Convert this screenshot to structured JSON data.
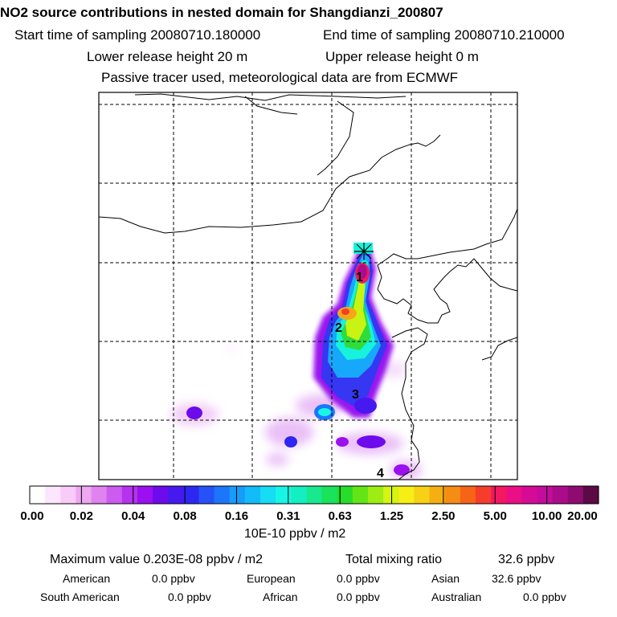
{
  "header": {
    "title": "NO2 source contributions in nested domain for Shangdianzi_200807",
    "start_label": "Start time of sampling 20080710.180000",
    "end_label": "End time of sampling 20080710.210000",
    "lower_release": "Lower release height   20 m",
    "upper_release": "Upper release height    0 m",
    "note": "Passive tracer used, meteorological data are from ECMWF"
  },
  "map": {
    "region_labels": [
      "1",
      "2",
      "3",
      "4"
    ],
    "receptor_marker": "receptor-star-icon"
  },
  "colorbar": {
    "tick_labels": [
      "0.00",
      "0.02",
      "0.04",
      "0.08",
      "0.16",
      "0.31",
      "0.63",
      "1.25",
      "2.50",
      "5.00",
      "10.00",
      "20.00"
    ],
    "unit_label": "10E-10 ppbv / m2",
    "colors": [
      "#ffffff",
      "#fde6fd",
      "#f8cbf8",
      "#eea7f1",
      "#e083f0",
      "#cc5bef",
      "#b532ee",
      "#9a10ef",
      "#6d0bec",
      "#4619ef",
      "#2d27f2",
      "#2651f7",
      "#1b76fa",
      "#189cfb",
      "#12bcf9",
      "#16dcf5",
      "#17f6e5",
      "#13efc1",
      "#18e98f",
      "#19e25b",
      "#27dc2a",
      "#63e417",
      "#9ded14",
      "#d4f413",
      "#f6ee15",
      "#f7d116",
      "#f6af13",
      "#f58d15",
      "#f66417",
      "#f63d2c",
      "#f31861",
      "#ea0f85",
      "#d60b95",
      "#c20c9c",
      "#ac0b8c",
      "#8e0c6f",
      "#5c0a46"
    ]
  },
  "summary": {
    "max_label": "Maximum value  0.203E-08 ppbv / m2",
    "total_label": "Total mixing ratio",
    "total_value": "32.6 ppbv",
    "american_label": "American",
    "american_value": "0.0 ppbv",
    "european_label": "European",
    "european_value": "0.0 ppbv",
    "asian_label": "Asian",
    "asian_value": "32.6 ppbv",
    "south_american_label": "South American",
    "south_american_value": "0.0 ppbv",
    "african_label": "African",
    "african_value": "0.0 ppbv",
    "australian_label": "Australian",
    "australian_value": "0.0 ppbv"
  }
}
